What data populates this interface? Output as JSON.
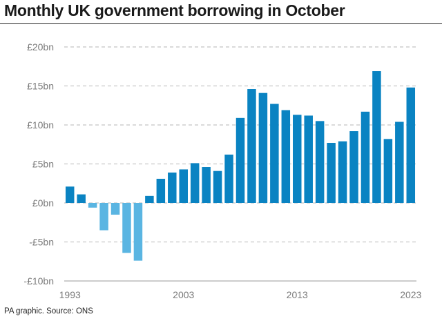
{
  "title": "Monthly UK government borrowing in October",
  "source": "PA graphic. Source: ONS",
  "chart_data": {
    "type": "bar",
    "x": [
      1993,
      1994,
      1995,
      1996,
      1997,
      1998,
      1999,
      2000,
      2001,
      2002,
      2003,
      2004,
      2005,
      2006,
      2007,
      2008,
      2009,
      2010,
      2011,
      2012,
      2013,
      2014,
      2015,
      2016,
      2017,
      2018,
      2019,
      2020,
      2021,
      2022,
      2023
    ],
    "values": [
      2.1,
      1.1,
      -0.6,
      -3.5,
      -1.5,
      -6.4,
      -7.4,
      0.9,
      3.1,
      3.9,
      4.3,
      5.1,
      4.6,
      4.1,
      6.2,
      10.9,
      14.6,
      14.1,
      12.7,
      11.9,
      11.3,
      11.2,
      10.5,
      7.7,
      7.9,
      9.2,
      11.7,
      16.9,
      8.2,
      10.4,
      14.8
    ],
    "ylim": [
      -10,
      20
    ],
    "yticks": [
      {
        "value": 20,
        "label": "£20bn"
      },
      {
        "value": 15,
        "label": "£15bn"
      },
      {
        "value": 10,
        "label": "£10bn"
      },
      {
        "value": 5,
        "label": "£5bn"
      },
      {
        "value": 0,
        "label": "£0bn"
      },
      {
        "value": -5,
        "label": "-£5bn"
      },
      {
        "value": -10,
        "label": "-£10bn"
      }
    ],
    "xticks": [
      {
        "value": 1993,
        "label": "1993"
      },
      {
        "value": 2003,
        "label": "2003"
      },
      {
        "value": 2013,
        "label": "2013"
      },
      {
        "value": 2023,
        "label": "2023"
      }
    ],
    "grid": true,
    "colors": {
      "positive": "#0a83c2",
      "negative": "#5ab5e2",
      "grid": "#b5b5b5",
      "axis": "#999999"
    }
  }
}
